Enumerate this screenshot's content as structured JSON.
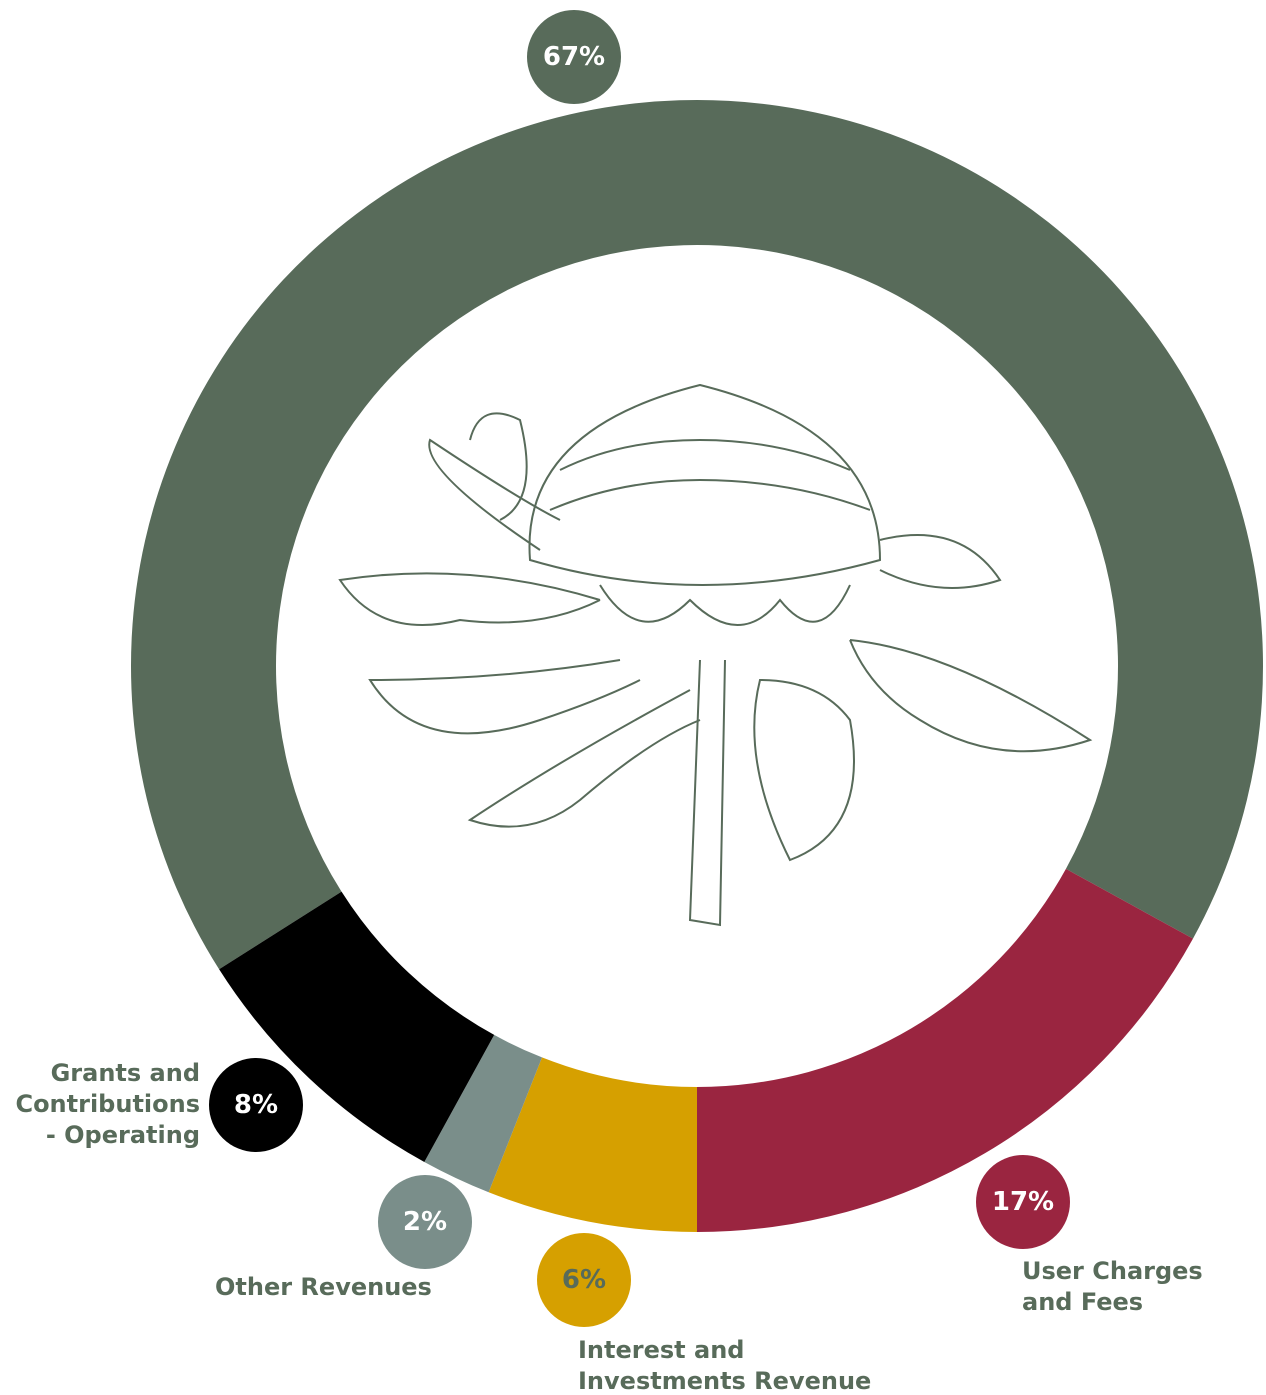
{
  "chart_data": {
    "type": "donut",
    "categories": [
      null,
      "User Charges and Fees",
      "Interest and Investments Revenue",
      "Other Revenues",
      "Grants and Contributions - Operating"
    ],
    "values": [
      67,
      17,
      6,
      2,
      8
    ],
    "value_labels": [
      "67%",
      "17%",
      "6%",
      "2%",
      "8%"
    ],
    "colors": [
      "#586b5a",
      "#9a2540",
      "#d6a000",
      "#7a8e8a",
      "#000000"
    ]
  }
}
